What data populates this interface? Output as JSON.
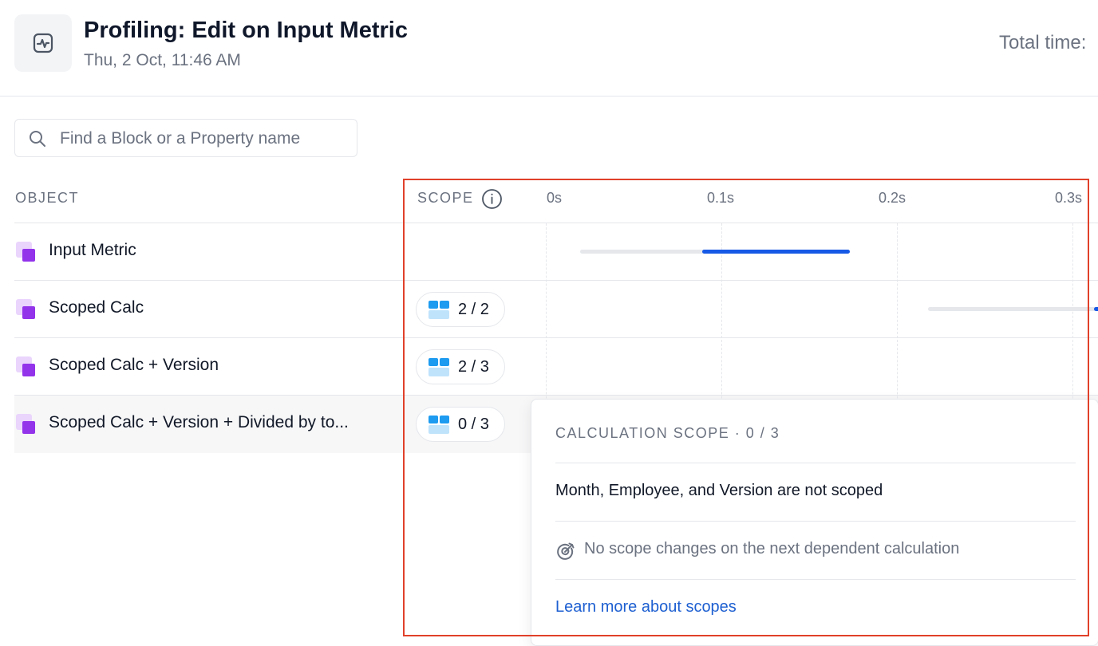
{
  "header": {
    "title": "Profiling: Edit on Input Metric",
    "subtitle": "Thu, 2 Oct, 11:46 AM",
    "total_label": "Total time:",
    "icon": "activity-icon"
  },
  "search": {
    "placeholder": "Find a Block or a Property name",
    "value": ""
  },
  "table": {
    "col_object": "OBJECT",
    "col_scope": "SCOPE",
    "ticks": [
      "0s",
      "0.1s",
      "0.2s",
      "0.3s"
    ],
    "rows": [
      {
        "name": "Input Metric",
        "scope": ""
      },
      {
        "name": "Scoped Calc",
        "scope": "2 / 2"
      },
      {
        "name": "Scoped Calc + Version",
        "scope": "2 / 3"
      },
      {
        "name": "Scoped Calc + Version + Divided by to...",
        "scope": "0 / 3"
      }
    ]
  },
  "popover": {
    "heading": "CALCULATION SCOPE · 0 / 3",
    "message": "Month, Employee, and Version are not scoped",
    "sub": "No scope changes on the next dependent calculation",
    "link": "Learn more about scopes"
  },
  "colors": {
    "accent": "#1659e6",
    "object_icon": "#9333ea",
    "scope_icon": "#1d9bf0",
    "highlight": "#e0402a"
  }
}
